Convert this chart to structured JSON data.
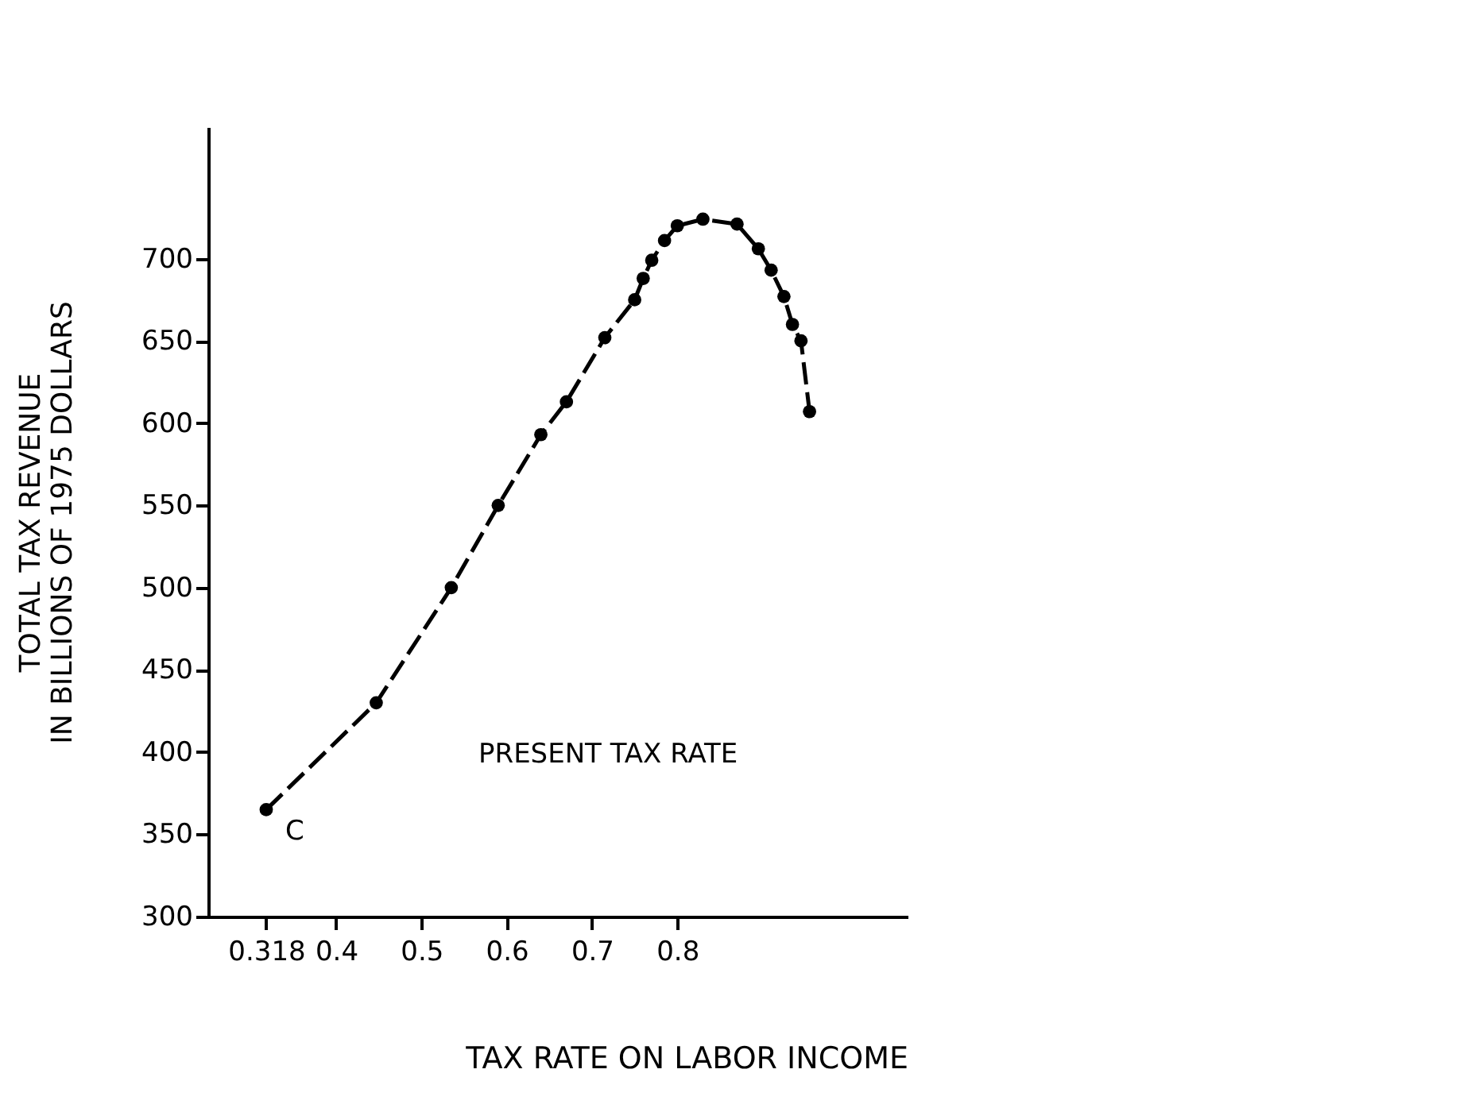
{
  "chart_data": {
    "type": "line",
    "xlabel": "TAX RATE ON LABOR INCOME",
    "ylabel": "TOTAL TAX REVENUE\nIN BILLIONS OF 1975 DOLLARS",
    "x": [
      0.318,
      0.447,
      0.535,
      0.59,
      0.64,
      0.67,
      0.715,
      0.75,
      0.76,
      0.77,
      0.785,
      0.8,
      0.83,
      0.87,
      0.895,
      0.91,
      0.925,
      0.935,
      0.945,
      0.955
    ],
    "series": [
      {
        "color": "#000000",
        "values": [
          365,
          430,
          500,
          550,
          593,
          613,
          652,
          675,
          688,
          699,
          711,
          720,
          724,
          721,
          706,
          693,
          677,
          660,
          650,
          607
        ]
      }
    ],
    "xlim": [
      0.25,
      1.07
    ],
    "xticks": [
      0.318,
      0.4,
      0.5,
      0.6,
      0.7,
      0.8
    ],
    "ylim": [
      300,
      780
    ],
    "yticks": [
      300,
      350,
      400,
      450,
      500,
      550,
      600,
      650,
      700
    ],
    "grid": false,
    "marker": "circle",
    "line_style": "dashed",
    "annotations": [
      {
        "text": "C",
        "x": 0.318,
        "y": 365
      },
      "PRESENT TAX RATE"
    ]
  }
}
